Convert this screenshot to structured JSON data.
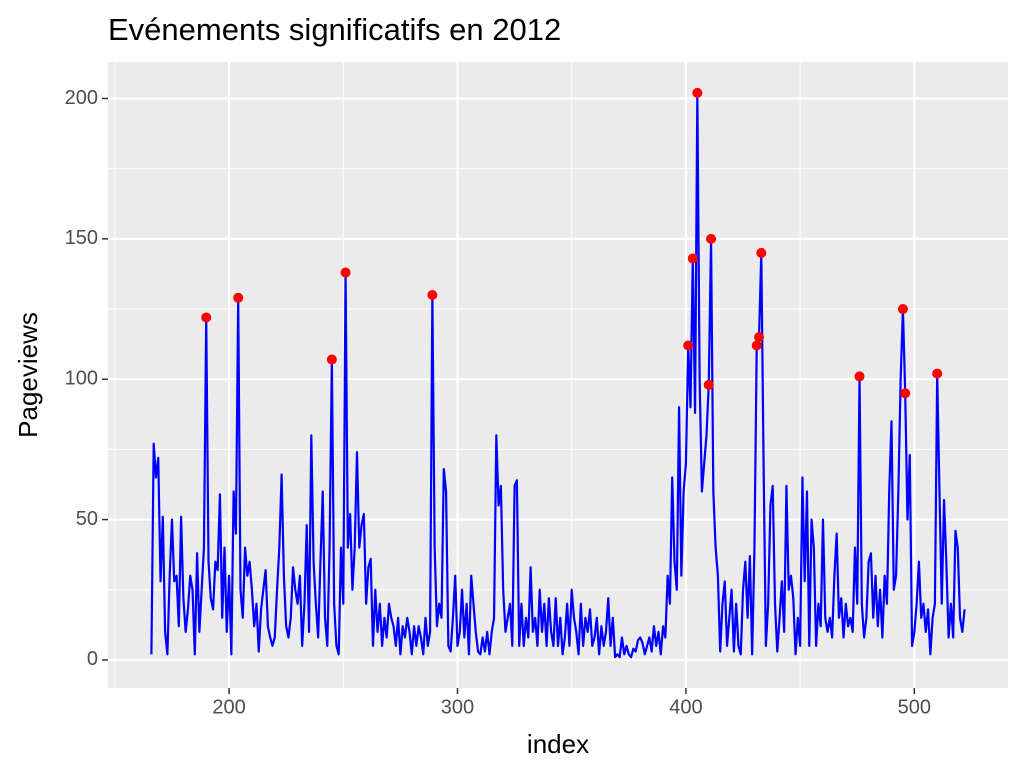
{
  "chart_data": {
    "type": "line",
    "title": "Evénements significatifs en  2012",
    "x_label": "index",
    "y_label": "Pageviews",
    "xlim": [
      147,
      541
    ],
    "ylim": [
      -10,
      213
    ],
    "xticks": [
      200,
      300,
      400,
      500
    ],
    "yticks": [
      0,
      50,
      100,
      150,
      200
    ],
    "xminor": [
      150,
      250,
      350,
      450
    ],
    "yminor": [
      25,
      75,
      125,
      175
    ],
    "grid": true,
    "background": "#ebebeb",
    "series": [
      {
        "color": "#0000ff",
        "x": [
          166,
          167,
          168,
          169,
          170,
          171,
          172,
          173,
          174,
          175,
          176,
          177,
          178,
          179,
          180,
          181,
          182,
          183,
          184,
          185,
          186,
          187,
          188,
          189,
          190,
          191,
          192,
          193,
          194,
          195,
          196,
          197,
          198,
          199,
          200,
          201,
          202,
          203,
          204,
          205,
          206,
          207,
          208,
          209,
          210,
          211,
          212,
          213,
          214,
          215,
          216,
          217,
          218,
          219,
          220,
          221,
          222,
          223,
          224,
          225,
          226,
          227,
          228,
          229,
          230,
          231,
          232,
          233,
          234,
          235,
          236,
          237,
          238,
          239,
          240,
          241,
          242,
          243,
          244,
          245,
          246,
          247,
          248,
          249,
          250,
          251,
          252,
          253,
          254,
          255,
          256,
          257,
          258,
          259,
          260,
          261,
          262,
          263,
          264,
          265,
          266,
          267,
          268,
          269,
          270,
          271,
          272,
          273,
          274,
          275,
          276,
          277,
          278,
          279,
          280,
          281,
          282,
          283,
          284,
          285,
          286,
          287,
          288,
          289,
          290,
          291,
          292,
          293,
          294,
          295,
          296,
          297,
          298,
          299,
          300,
          301,
          302,
          303,
          304,
          305,
          306,
          307,
          308,
          309,
          310,
          311,
          312,
          313,
          314,
          315,
          316,
          317,
          318,
          319,
          320,
          321,
          322,
          323,
          324,
          325,
          326,
          327,
          328,
          329,
          330,
          331,
          332,
          333,
          334,
          335,
          336,
          337,
          338,
          339,
          340,
          341,
          342,
          343,
          344,
          345,
          346,
          347,
          348,
          349,
          350,
          351,
          352,
          353,
          354,
          355,
          356,
          357,
          358,
          359,
          360,
          361,
          362,
          363,
          364,
          365,
          366,
          367,
          368,
          369,
          370,
          371,
          372,
          373,
          374,
          375,
          376,
          377,
          378,
          379,
          380,
          381,
          382,
          383,
          384,
          385,
          386,
          387,
          388,
          389,
          390,
          391,
          392,
          393,
          394,
          395,
          396,
          397,
          398,
          399,
          400,
          401,
          402,
          403,
          404,
          405,
          406,
          407,
          408,
          409,
          410,
          411,
          412,
          413,
          414,
          415,
          416,
          417,
          418,
          419,
          420,
          421,
          422,
          423,
          424,
          425,
          426,
          427,
          428,
          429,
          430,
          431,
          432,
          433,
          434,
          435,
          436,
          437,
          438,
          439,
          440,
          441,
          442,
          443,
          444,
          445,
          446,
          447,
          448,
          449,
          450,
          451,
          452,
          453,
          454,
          455,
          456,
          457,
          458,
          459,
          460,
          461,
          462,
          463,
          464,
          465,
          466,
          467,
          468,
          469,
          470,
          471,
          472,
          473,
          474,
          475,
          476,
          477,
          478,
          479,
          480,
          481,
          482,
          483,
          484,
          485,
          486,
          487,
          488,
          489,
          490,
          491,
          492,
          493,
          494,
          495,
          496,
          497,
          498,
          499,
          500,
          501,
          502,
          503,
          504,
          505,
          506,
          507,
          508,
          509,
          510,
          511,
          512,
          513,
          514,
          515,
          516,
          517,
          518,
          519,
          520,
          521,
          522
        ],
        "values": [
          2,
          77,
          65,
          72,
          28,
          51,
          10,
          2,
          30,
          50,
          28,
          30,
          12,
          51,
          22,
          10,
          18,
          30,
          25,
          2,
          38,
          10,
          25,
          40,
          122,
          35,
          22,
          18,
          35,
          32,
          59,
          15,
          40,
          10,
          30,
          2,
          60,
          45,
          129,
          25,
          15,
          40,
          30,
          35,
          25,
          12,
          20,
          3,
          18,
          25,
          32,
          12,
          8,
          5,
          8,
          25,
          40,
          66,
          30,
          12,
          8,
          15,
          33,
          25,
          20,
          30,
          5,
          20,
          48,
          10,
          80,
          35,
          20,
          8,
          35,
          60,
          15,
          5,
          40,
          107,
          20,
          5,
          2,
          40,
          20,
          138,
          40,
          52,
          25,
          40,
          74,
          40,
          48,
          52,
          20,
          33,
          36,
          5,
          25,
          10,
          20,
          5,
          15,
          8,
          20,
          15,
          12,
          5,
          15,
          2,
          12,
          8,
          15,
          10,
          2,
          12,
          5,
          12,
          8,
          2,
          15,
          5,
          10,
          130,
          40,
          12,
          20,
          15,
          68,
          60,
          5,
          3,
          15,
          30,
          5,
          10,
          25,
          8,
          20,
          2,
          30,
          20,
          10,
          3,
          2,
          8,
          3,
          10,
          2,
          10,
          15,
          80,
          55,
          62,
          25,
          10,
          15,
          20,
          5,
          62,
          64,
          5,
          20,
          5,
          15,
          8,
          33,
          10,
          15,
          5,
          25,
          10,
          20,
          5,
          22,
          10,
          5,
          22,
          5,
          15,
          2,
          8,
          20,
          5,
          25,
          15,
          10,
          2,
          20,
          5,
          15,
          10,
          18,
          5,
          8,
          15,
          2,
          12,
          5,
          10,
          22,
          5,
          15,
          1,
          2,
          1,
          8,
          2,
          5,
          2,
          1,
          4,
          3,
          7,
          8,
          6,
          2,
          5,
          8,
          3,
          12,
          5,
          10,
          2,
          12,
          8,
          30,
          20,
          65,
          35,
          25,
          90,
          30,
          60,
          70,
          112,
          90,
          143,
          88,
          202,
          100,
          60,
          70,
          80,
          98,
          150,
          60,
          40,
          30,
          3,
          20,
          28,
          5,
          15,
          25,
          3,
          20,
          5,
          2,
          25,
          35,
          15,
          37,
          2,
          40,
          112,
          115,
          145,
          70,
          5,
          20,
          55,
          62,
          20,
          3,
          15,
          28,
          10,
          62,
          25,
          30,
          22,
          2,
          15,
          5,
          65,
          28,
          60,
          5,
          50,
          40,
          5,
          20,
          12,
          50,
          15,
          10,
          15,
          8,
          30,
          45,
          15,
          22,
          8,
          20,
          12,
          15,
          10,
          40,
          20,
          101,
          20,
          8,
          15,
          35,
          38,
          15,
          30,
          12,
          25,
          8,
          30,
          20,
          60,
          85,
          25,
          30,
          60,
          100,
          125,
          95,
          50,
          73,
          5,
          10,
          20,
          35,
          15,
          20,
          10,
          18,
          2,
          15,
          20,
          102,
          60,
          20,
          57,
          35,
          8,
          20,
          8,
          46,
          40,
          15,
          10,
          18
        ]
      },
      {
        "color": "#ff0000",
        "marker": "point",
        "x": [
          190,
          204,
          245,
          251,
          289,
          401,
          403,
          405,
          410,
          411,
          431,
          432,
          433,
          476,
          495,
          496,
          510
        ],
        "values": [
          122,
          129,
          107,
          138,
          130,
          112,
          143,
          202,
          98,
          150,
          112,
          115,
          145,
          101,
          125,
          95,
          102
        ]
      }
    ]
  }
}
